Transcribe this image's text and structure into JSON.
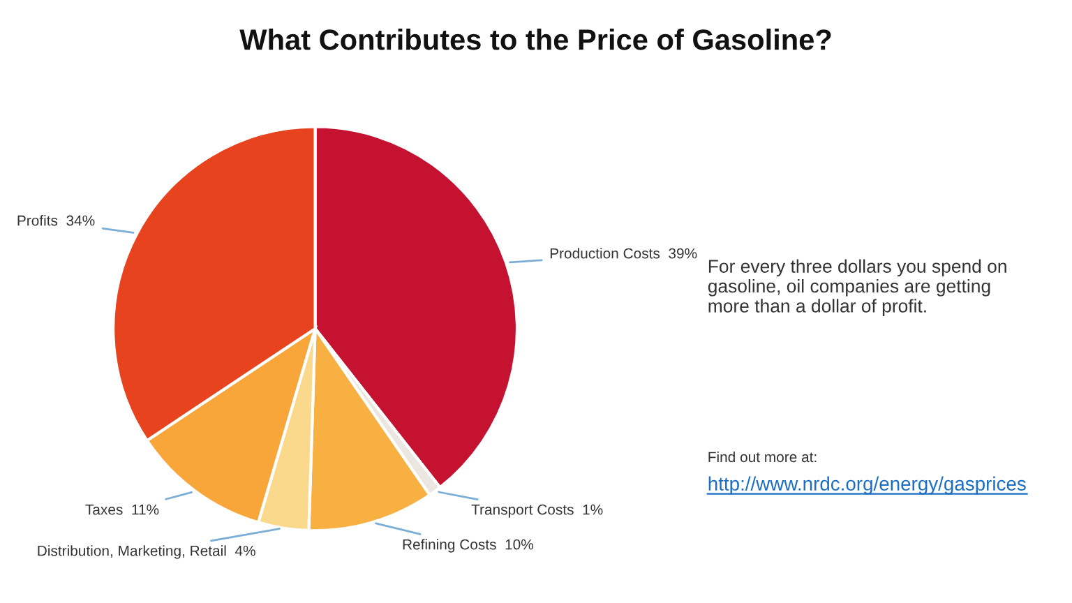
{
  "chart_data": {
    "type": "pie",
    "title": "What Contributes to the Price of Gasoline?",
    "categories": [
      "Production Costs",
      "Transport Costs",
      "Refining Costs",
      "Distribution, Marketing, Retail",
      "Taxes",
      "Profits"
    ],
    "values": [
      39,
      1,
      10,
      4,
      11,
      34
    ],
    "value_labels": [
      "39%",
      "1%",
      "10%",
      "4%",
      "11%",
      "34%"
    ],
    "colors": [
      "#c41230",
      "#ece6e0",
      "#f9b043",
      "#fbd98c",
      "#f8a53a",
      "#e8431f"
    ],
    "annotations": [
      "For every three dollars you spend on gasoline, oil companies are getting more than a dollar of profit.",
      "Find out more at:",
      "http://www.nrdc.org/energy/gasprices"
    ]
  }
}
